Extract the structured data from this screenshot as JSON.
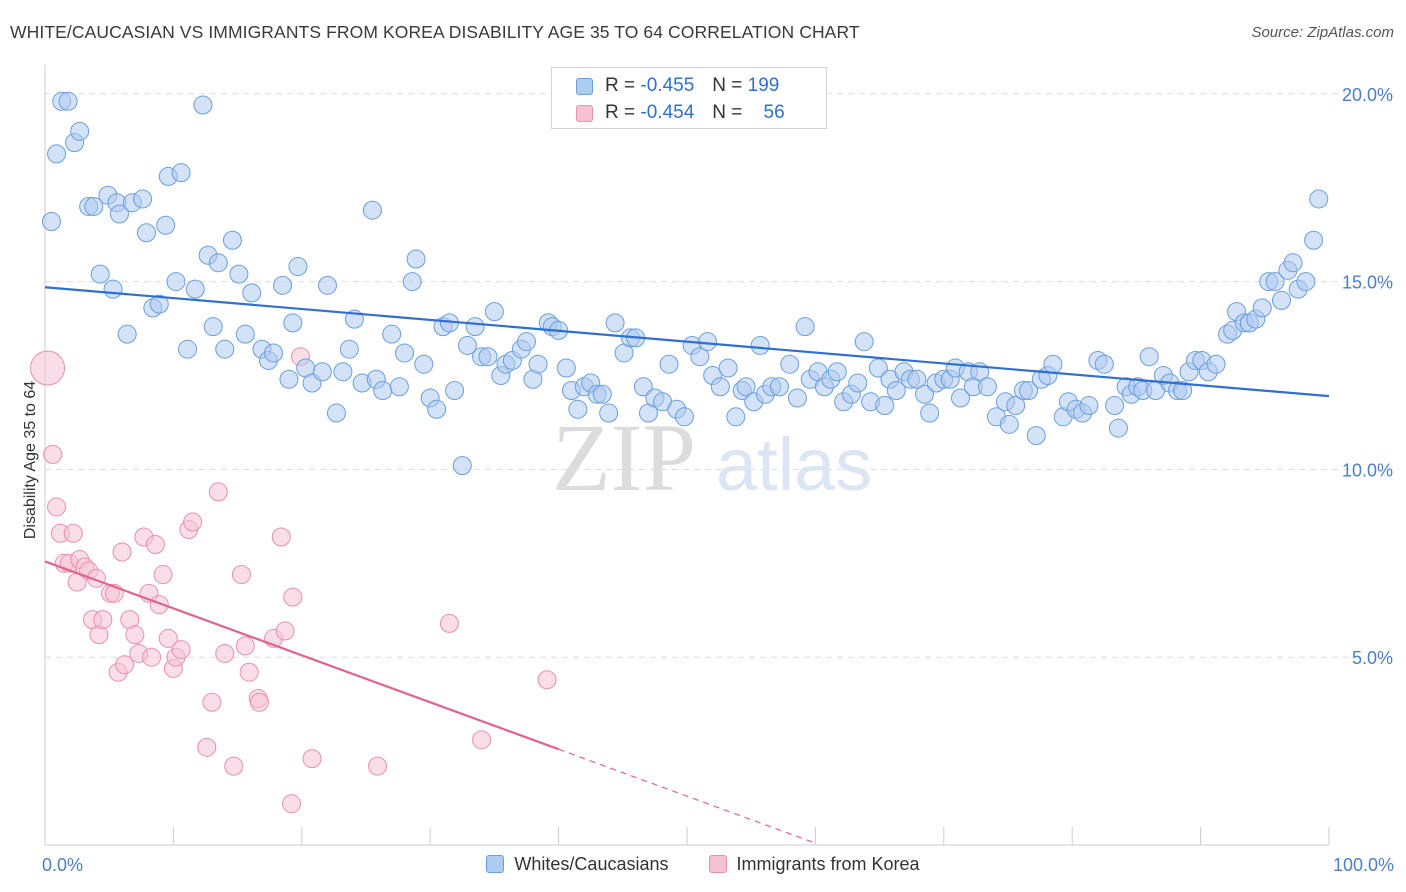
{
  "header": {
    "title": "WHITE/CAUCASIAN VS IMMIGRANTS FROM KOREA DISABILITY AGE 35 TO 64 CORRELATION CHART",
    "source": "Source: ZipAtlas.com"
  },
  "watermark": {
    "zip": "ZIP",
    "atlas": "atlas"
  },
  "legend_top": {
    "rows": [
      {
        "r_label": "R =",
        "r_value": "-0.455",
        "n_label": "N =",
        "n_value": "199"
      },
      {
        "r_label": "R =",
        "r_value": "-0.454",
        "n_label": "N =",
        "n_value": "56"
      }
    ]
  },
  "legend_bottom": {
    "items": [
      "Whites/Caucasians",
      "Immigrants from Korea"
    ]
  },
  "chart_data": {
    "type": "scatter",
    "title": "WHITE/CAUCASIAN VS IMMIGRANTS FROM KOREA DISABILITY AGE 35 TO 64 CORRELATION CHART",
    "xlabel": "",
    "ylabel": "Disability Age 35 to 64",
    "xlim": [
      0,
      100
    ],
    "ylim": [
      0,
      20.5
    ],
    "x_tick_labels": [
      "0.0%",
      "100.0%"
    ],
    "y_ticks": [
      5,
      10,
      15,
      20
    ],
    "y_tick_labels": [
      "5.0%",
      "10.0%",
      "15.0%",
      "20.0%"
    ],
    "grid": "horizontal dashed",
    "legend_position": "top-center",
    "colors": {
      "whites_fill": "#aecbf0",
      "whites_stroke": "#6b9fdc",
      "whites_line": "#2e6fd1",
      "korea_fill": "#f6c2d3",
      "korea_stroke": "#e890ad",
      "korea_line": "#e0648f"
    },
    "series": [
      {
        "name": "Whites/Caucasians",
        "trend": {
          "x0": 0,
          "y0": 14.85,
          "x1": 100,
          "y1": 11.95
        },
        "points": [
          [
            0.5,
            16.6
          ],
          [
            0.9,
            18.4
          ],
          [
            1.3,
            19.8
          ],
          [
            1.8,
            19.8
          ],
          [
            2.3,
            18.7
          ],
          [
            2.7,
            19.0
          ],
          [
            3.4,
            17.0
          ],
          [
            3.8,
            17.0
          ],
          [
            4.3,
            15.2
          ],
          [
            4.9,
            17.3
          ],
          [
            5.3,
            14.8
          ],
          [
            5.6,
            17.1
          ],
          [
            5.8,
            16.8
          ],
          [
            6.4,
            13.6
          ],
          [
            6.8,
            17.1
          ],
          [
            7.6,
            17.2
          ],
          [
            7.9,
            16.3
          ],
          [
            8.4,
            14.3
          ],
          [
            8.9,
            14.4
          ],
          [
            9.4,
            16.5
          ],
          [
            9.6,
            17.8
          ],
          [
            10.2,
            15.0
          ],
          [
            10.6,
            17.9
          ],
          [
            11.1,
            13.2
          ],
          [
            11.7,
            14.8
          ],
          [
            12.3,
            19.7
          ],
          [
            12.7,
            15.7
          ],
          [
            13.1,
            13.8
          ],
          [
            13.5,
            15.5
          ],
          [
            14.0,
            13.2
          ],
          [
            14.6,
            16.1
          ],
          [
            15.1,
            15.2
          ],
          [
            15.6,
            13.6
          ],
          [
            16.1,
            14.7
          ],
          [
            16.9,
            13.2
          ],
          [
            17.4,
            12.9
          ],
          [
            17.8,
            13.1
          ],
          [
            18.5,
            14.9
          ],
          [
            19.0,
            12.4
          ],
          [
            19.3,
            13.9
          ],
          [
            19.7,
            15.4
          ],
          [
            20.3,
            12.7
          ],
          [
            20.8,
            12.3
          ],
          [
            21.6,
            12.6
          ],
          [
            22.0,
            14.9
          ],
          [
            22.7,
            11.5
          ],
          [
            23.2,
            12.6
          ],
          [
            23.7,
            13.2
          ],
          [
            24.1,
            14.0
          ],
          [
            24.7,
            12.3
          ],
          [
            25.5,
            16.9
          ],
          [
            25.8,
            12.4
          ],
          [
            26.3,
            12.1
          ],
          [
            27.0,
            13.6
          ],
          [
            27.6,
            12.2
          ],
          [
            28.0,
            13.1
          ],
          [
            28.6,
            15.0
          ],
          [
            28.9,
            15.6
          ],
          [
            29.5,
            12.8
          ],
          [
            30.0,
            11.9
          ],
          [
            30.5,
            11.6
          ],
          [
            31.0,
            13.8
          ],
          [
            31.5,
            13.9
          ],
          [
            31.9,
            12.1
          ],
          [
            32.5,
            10.1
          ],
          [
            32.9,
            13.3
          ],
          [
            33.5,
            13.8
          ],
          [
            34.0,
            13.0
          ],
          [
            34.5,
            13.0
          ],
          [
            35.0,
            14.2
          ],
          [
            35.5,
            12.5
          ],
          [
            35.9,
            12.8
          ],
          [
            36.4,
            12.9
          ],
          [
            37.1,
            13.2
          ],
          [
            37.5,
            13.4
          ],
          [
            38.0,
            12.4
          ],
          [
            38.4,
            12.8
          ],
          [
            39.2,
            13.9
          ],
          [
            39.5,
            13.8
          ],
          [
            40.0,
            13.7
          ],
          [
            40.6,
            12.7
          ],
          [
            41.0,
            12.1
          ],
          [
            41.5,
            11.6
          ],
          [
            42.0,
            12.2
          ],
          [
            42.5,
            12.3
          ],
          [
            43.0,
            12.0
          ],
          [
            43.4,
            12.0
          ],
          [
            43.9,
            11.5
          ],
          [
            44.4,
            13.9
          ],
          [
            45.1,
            13.1
          ],
          [
            45.6,
            13.5
          ],
          [
            46.0,
            13.5
          ],
          [
            46.6,
            12.2
          ],
          [
            47.0,
            11.5
          ],
          [
            47.5,
            11.9
          ],
          [
            48.1,
            11.8
          ],
          [
            48.6,
            12.8
          ],
          [
            49.2,
            11.6
          ],
          [
            49.8,
            11.4
          ],
          [
            50.4,
            13.3
          ],
          [
            51.0,
            13.0
          ],
          [
            51.6,
            13.4
          ],
          [
            52.0,
            12.5
          ],
          [
            52.6,
            12.2
          ],
          [
            53.2,
            12.7
          ],
          [
            53.8,
            11.4
          ],
          [
            54.3,
            12.1
          ],
          [
            54.6,
            12.2
          ],
          [
            55.2,
            11.8
          ],
          [
            55.7,
            13.3
          ],
          [
            56.1,
            12.0
          ],
          [
            56.6,
            12.2
          ],
          [
            57.2,
            12.2
          ],
          [
            58.0,
            12.8
          ],
          [
            58.6,
            11.9
          ],
          [
            59.2,
            13.8
          ],
          [
            59.6,
            12.4
          ],
          [
            60.2,
            12.6
          ],
          [
            60.7,
            12.2
          ],
          [
            61.2,
            12.4
          ],
          [
            61.7,
            12.6
          ],
          [
            62.2,
            11.8
          ],
          [
            62.8,
            12.0
          ],
          [
            63.3,
            12.3
          ],
          [
            63.8,
            13.4
          ],
          [
            64.3,
            11.8
          ],
          [
            64.9,
            12.7
          ],
          [
            65.4,
            11.7
          ],
          [
            65.8,
            12.4
          ],
          [
            66.3,
            12.1
          ],
          [
            66.9,
            12.6
          ],
          [
            67.4,
            12.4
          ],
          [
            67.9,
            12.4
          ],
          [
            68.5,
            12.0
          ],
          [
            68.9,
            11.5
          ],
          [
            69.4,
            12.3
          ],
          [
            70.0,
            12.4
          ],
          [
            70.5,
            12.4
          ],
          [
            70.9,
            12.7
          ],
          [
            71.3,
            11.9
          ],
          [
            71.9,
            12.6
          ],
          [
            72.3,
            12.2
          ],
          [
            72.8,
            12.6
          ],
          [
            73.4,
            12.2
          ],
          [
            74.1,
            11.4
          ],
          [
            74.8,
            11.8
          ],
          [
            75.1,
            11.2
          ],
          [
            75.6,
            11.7
          ],
          [
            76.2,
            12.1
          ],
          [
            76.6,
            12.1
          ],
          [
            77.2,
            10.9
          ],
          [
            77.6,
            12.4
          ],
          [
            78.1,
            12.5
          ],
          [
            78.5,
            12.8
          ],
          [
            79.3,
            11.4
          ],
          [
            79.7,
            11.8
          ],
          [
            80.3,
            11.6
          ],
          [
            80.8,
            11.5
          ],
          [
            81.3,
            11.7
          ],
          [
            82.0,
            12.9
          ],
          [
            82.5,
            12.8
          ],
          [
            83.3,
            11.7
          ],
          [
            83.6,
            11.1
          ],
          [
            84.2,
            12.2
          ],
          [
            84.6,
            12.0
          ],
          [
            85.1,
            12.2
          ],
          [
            85.5,
            12.1
          ],
          [
            86.0,
            13.0
          ],
          [
            86.5,
            12.1
          ],
          [
            87.1,
            12.5
          ],
          [
            87.6,
            12.3
          ],
          [
            88.2,
            12.1
          ],
          [
            88.6,
            12.1
          ],
          [
            89.1,
            12.6
          ],
          [
            89.6,
            12.9
          ],
          [
            90.1,
            12.9
          ],
          [
            90.6,
            12.6
          ],
          [
            91.2,
            12.8
          ],
          [
            92.1,
            13.6
          ],
          [
            92.5,
            13.7
          ],
          [
            92.8,
            14.2
          ],
          [
            93.4,
            13.9
          ],
          [
            93.8,
            13.9
          ],
          [
            94.3,
            14.0
          ],
          [
            94.8,
            14.3
          ],
          [
            95.3,
            15.0
          ],
          [
            95.8,
            15.0
          ],
          [
            96.3,
            14.5
          ],
          [
            96.8,
            15.3
          ],
          [
            97.2,
            15.5
          ],
          [
            97.6,
            14.8
          ],
          [
            98.2,
            15.0
          ],
          [
            98.8,
            16.1
          ],
          [
            99.2,
            17.2
          ]
        ]
      },
      {
        "name": "Immigrants from Korea",
        "trend": {
          "x0": 0,
          "y0": 7.55,
          "x1": 40,
          "y1": 2.55,
          "dashed_to_x": 60,
          "dashed_to_y": 0.05
        },
        "points": [
          [
            0.2,
            12.7
          ],
          [
            0.6,
            10.4
          ],
          [
            0.9,
            9.0
          ],
          [
            1.2,
            8.3
          ],
          [
            1.5,
            7.5
          ],
          [
            1.9,
            7.5
          ],
          [
            2.2,
            8.3
          ],
          [
            2.5,
            7.0
          ],
          [
            2.7,
            7.6
          ],
          [
            3.1,
            7.4
          ],
          [
            3.4,
            7.3
          ],
          [
            3.7,
            6.0
          ],
          [
            4.0,
            7.1
          ],
          [
            4.2,
            5.6
          ],
          [
            4.5,
            6.0
          ],
          [
            5.1,
            6.7
          ],
          [
            5.4,
            6.7
          ],
          [
            5.7,
            4.6
          ],
          [
            6.0,
            7.8
          ],
          [
            6.2,
            4.8
          ],
          [
            6.6,
            6.0
          ],
          [
            7.0,
            5.6
          ],
          [
            7.3,
            5.1
          ],
          [
            7.7,
            8.2
          ],
          [
            8.1,
            6.7
          ],
          [
            8.3,
            5.0
          ],
          [
            8.6,
            8.0
          ],
          [
            8.9,
            6.4
          ],
          [
            9.2,
            7.2
          ],
          [
            9.6,
            5.5
          ],
          [
            10.0,
            4.7
          ],
          [
            10.2,
            5.0
          ],
          [
            10.6,
            5.2
          ],
          [
            11.2,
            8.4
          ],
          [
            11.5,
            8.6
          ],
          [
            12.6,
            2.6
          ],
          [
            13.0,
            3.8
          ],
          [
            13.5,
            9.4
          ],
          [
            14.0,
            5.1
          ],
          [
            14.7,
            2.1
          ],
          [
            15.3,
            7.2
          ],
          [
            15.6,
            5.3
          ],
          [
            15.9,
            4.6
          ],
          [
            16.6,
            3.9
          ],
          [
            16.7,
            3.8
          ],
          [
            17.8,
            5.5
          ],
          [
            18.4,
            8.2
          ],
          [
            18.7,
            5.7
          ],
          [
            19.2,
            1.1
          ],
          [
            19.3,
            6.6
          ],
          [
            19.9,
            13.0
          ],
          [
            20.8,
            2.3
          ],
          [
            25.9,
            2.1
          ],
          [
            31.5,
            5.9
          ],
          [
            34.0,
            2.8
          ],
          [
            39.1,
            4.4
          ]
        ]
      }
    ]
  }
}
